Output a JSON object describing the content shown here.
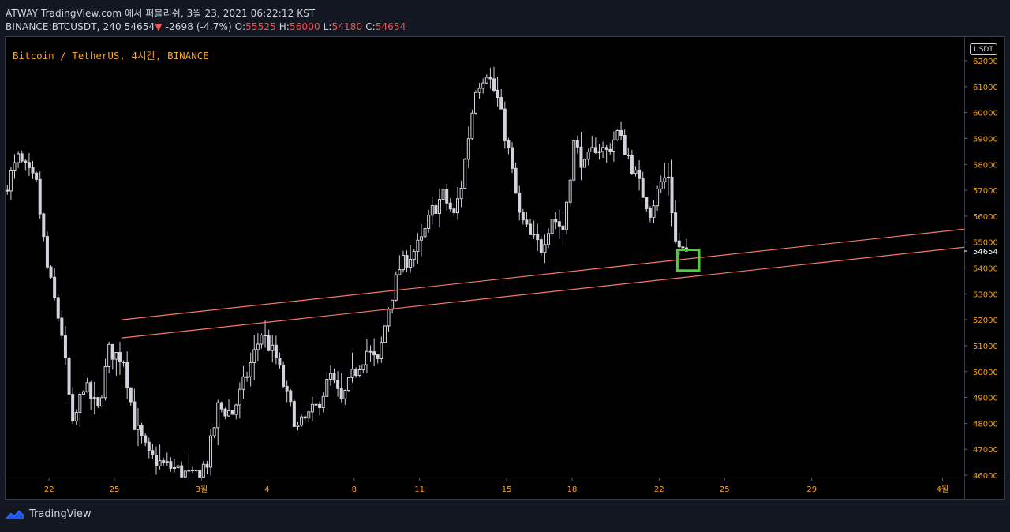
{
  "header": {
    "line1": "ATWAY TradingView.com 에서 퍼블리쉬, 3월 23, 2021 06:22:12 KST",
    "symbol": "BINANCE:BTCUSDT, 240",
    "last": "54654",
    "arrow": "▼",
    "change": "-2698 (-4.7%)",
    "o_label": "O:",
    "o": "55525",
    "h_label": "H:",
    "h": "56000",
    "l_label": "L:",
    "l": "54180",
    "c_label": "C:",
    "c": "54654"
  },
  "symbol_title": "Bitcoin / TetherUS, 4시간, BINANCE",
  "currency_badge": "USDT",
  "footer": {
    "brand": "TradingView"
  },
  "colors": {
    "background": "#000000",
    "frame": "#131722",
    "candle": "#d1d4dc",
    "axis_text": "#f7a21b",
    "trendline": "#f7786b",
    "highlight_box": "#4cd137",
    "down": "#ef5350"
  },
  "chart_data": {
    "type": "candlestick",
    "ylim": [
      45900,
      62500
    ],
    "yticks": [
      62000,
      61000,
      60000,
      59000,
      58000,
      57000,
      56000,
      55000,
      54000,
      53000,
      52000,
      51000,
      50000,
      49000,
      48000,
      47000,
      46000
    ],
    "xlabels": [
      "22",
      "25",
      "3월",
      "4",
      "8",
      "11",
      "15",
      "18",
      "22",
      "25",
      "29",
      "4월"
    ],
    "last_price_label": "54654",
    "price_path": [
      [
        "02-20 00",
        57000
      ],
      [
        "02-20 16",
        58200
      ],
      [
        "02-21 12",
        57200
      ],
      [
        "02-22 00",
        54000
      ],
      [
        "02-22 16",
        51500
      ],
      [
        "02-23 04",
        47800
      ],
      [
        "02-23 16",
        49500
      ],
      [
        "02-24 08",
        48500
      ],
      [
        "02-24 20",
        50800
      ],
      [
        "02-25 12",
        50500
      ],
      [
        "02-26 00",
        48000
      ],
      [
        "02-26 16",
        46700
      ],
      [
        "02-27 08",
        46400
      ],
      [
        "02-28 00",
        46200
      ],
      [
        "02-28 16",
        45900
      ],
      [
        "03-01 08",
        46500
      ],
      [
        "03-01 20",
        48600
      ],
      [
        "03-02 12",
        48400
      ],
      [
        "03-03 00",
        49500
      ],
      [
        "03-03 20",
        51500
      ],
      [
        "03-04 12",
        50500
      ],
      [
        "03-05 00",
        49000
      ],
      [
        "03-05 12",
        47800
      ],
      [
        "03-06 08",
        48600
      ],
      [
        "03-07 00",
        49800
      ],
      [
        "03-07 12",
        48800
      ],
      [
        "03-08 00",
        49800
      ],
      [
        "03-08 16",
        50800
      ],
      [
        "03-09 04",
        50300
      ],
      [
        "03-09 16",
        52500
      ],
      [
        "03-10 04",
        54000
      ],
      [
        "03-10 16",
        54500
      ],
      [
        "03-11 04",
        55000
      ],
      [
        "03-11 16",
        56200
      ],
      [
        "03-12 04",
        56800
      ],
      [
        "03-12 16",
        56000
      ],
      [
        "03-13 00",
        57200
      ],
      [
        "03-13 16",
        61000
      ],
      [
        "03-14 04",
        61600
      ],
      [
        "03-14 16",
        60500
      ],
      [
        "03-15 04",
        58500
      ],
      [
        "03-15 16",
        56000
      ],
      [
        "03-16 04",
        55200
      ],
      [
        "03-16 16",
        54800
      ],
      [
        "03-17 04",
        56000
      ],
      [
        "03-17 16",
        55500
      ],
      [
        "03-18 04",
        58800
      ],
      [
        "03-18 16",
        57900
      ],
      [
        "03-19 04",
        58700
      ],
      [
        "03-19 16",
        58500
      ],
      [
        "03-20 04",
        59200
      ],
      [
        "03-20 16",
        58300
      ],
      [
        "03-21 04",
        57200
      ],
      [
        "03-21 16",
        56200
      ],
      [
        "03-22 04",
        57300
      ],
      [
        "03-22 12",
        57600
      ],
      [
        "03-22 20",
        55000
      ],
      [
        "03-23 04",
        54654
      ]
    ],
    "trendlines": [
      {
        "start": [
          "02-25 08",
          52000
        ],
        "end": [
          "04-05 00",
          55500
        ]
      },
      {
        "start": [
          "02-25 08",
          51300
        ],
        "end": [
          "04-05 00",
          54800
        ]
      }
    ],
    "highlight": {
      "from": "03-22 20",
      "to": "03-23 20",
      "low": 53900,
      "high": 54700
    }
  }
}
